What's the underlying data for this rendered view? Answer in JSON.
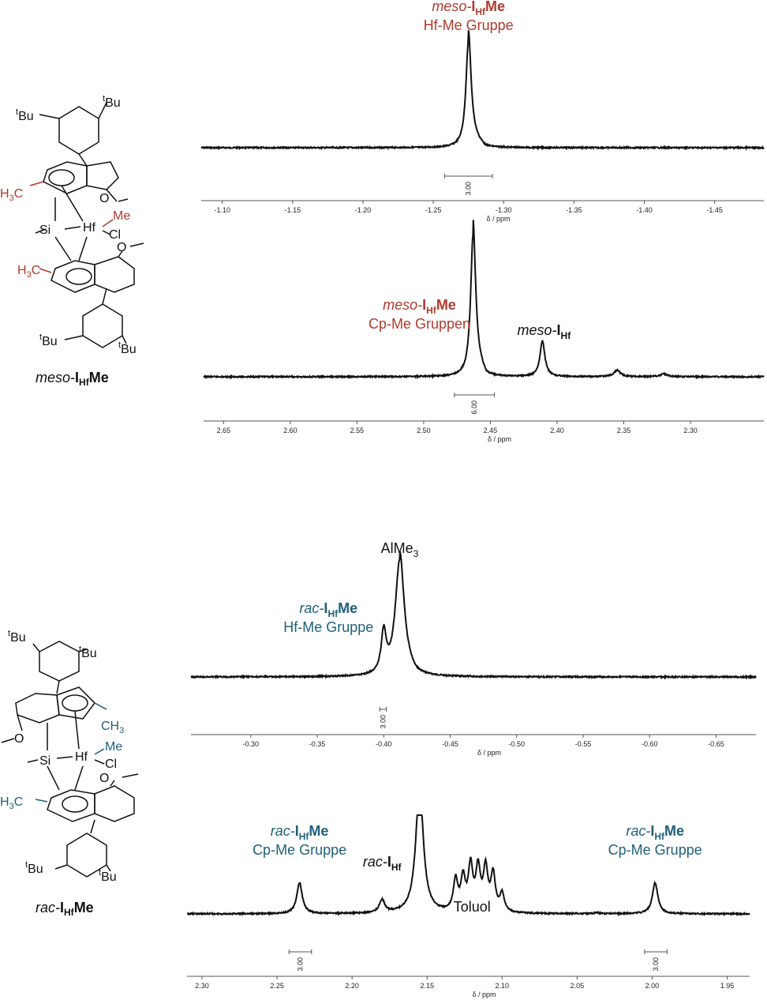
{
  "colors": {
    "meso": "#b03a2e",
    "rac": "#1f5f7a",
    "black": "#111111"
  },
  "compounds": [
    {
      "name_italic": "meso-",
      "name_bold": "I",
      "name_sub": "Hf",
      "name_tail": "Me",
      "labels": {
        "tbu_a": "Bu",
        "tbu_sup": "t",
        "tbu_b": "Bu",
        "tbu_c": "Bu",
        "tbu_d": "Bu",
        "ch3_a": "H",
        "ch3_a_sub": "3",
        "ch3_a_tail": "C",
        "ch3_b": "H",
        "ch3_b_sub": "3",
        "ch3_b_tail": "C",
        "o_a": "O",
        "o_b": "O",
        "si": "Si",
        "hf": "Hf",
        "me": "Me",
        "cl": "Cl"
      }
    },
    {
      "name_italic": "rac-",
      "name_bold": "I",
      "name_sub": "Hf",
      "name_tail": "Me",
      "labels": {
        "tbu_a": "Bu",
        "tbu_sup": "t",
        "tbu_b": "Bu",
        "tbu_c": "Bu",
        "tbu_d": "Bu",
        "ch3_a": "CH",
        "ch3_a_sub": "3",
        "ch3_b": "H",
        "ch3_b_sub": "3",
        "ch3_b_tail": "C",
        "o_a": "O",
        "o_b": "O",
        "si": "Si",
        "hf": "Hf",
        "me": "Me",
        "cl": "Cl"
      }
    }
  ],
  "chart_data": [
    {
      "type": "line",
      "xlabel": "δ / ppm",
      "xlim": [
        -1.085,
        -1.485
      ],
      "ticks": [
        -1.1,
        -1.15,
        -1.2,
        -1.25,
        -1.3,
        -1.35,
        -1.4,
        -1.45
      ],
      "tick_labels": [
        "-1.10",
        "-1.15",
        "-1.20",
        "-1.25",
        "-1.30",
        "-1.35",
        "-1.40",
        "-1.45"
      ],
      "peaks": [
        {
          "x": -1.275,
          "height": 1.0,
          "width": 0.0022,
          "tail": 0.012,
          "tail_height": 0.1
        }
      ],
      "integrals": [
        {
          "from": -1.258,
          "to": -1.292,
          "value": "3.00"
        }
      ],
      "annotations": [
        {
          "at": -1.275,
          "lines": [
            {
              "italic": "meso-",
              "bold": "I",
              "sub": "Hf",
              "tail": "Me"
            },
            {
              "plain": "Hf-Me Gruppe"
            }
          ],
          "color": "meso"
        }
      ]
    },
    {
      "type": "line",
      "xlabel": "δ / ppm",
      "xlim": [
        2.665,
        2.245
      ],
      "ticks": [
        2.65,
        2.6,
        2.55,
        2.5,
        2.45,
        2.4,
        2.35,
        2.3
      ],
      "tick_labels": [
        "2.65",
        "2.60",
        "2.55",
        "2.50",
        "2.45",
        "2.40",
        "2.35",
        "2.30"
      ],
      "peaks": [
        {
          "x": 2.463,
          "height": 1.0,
          "width": 0.0022,
          "tail": 0.01,
          "tail_height": 0.12
        },
        {
          "x": 2.411,
          "height": 0.25,
          "width": 0.0022
        },
        {
          "x": 2.355,
          "height": 0.045,
          "width": 0.003
        },
        {
          "x": 2.32,
          "height": 0.02,
          "width": 0.003
        }
      ],
      "integrals": [
        {
          "from": 2.477,
          "to": 2.447,
          "value": "6.00"
        }
      ],
      "annotations": [
        {
          "at": 2.463,
          "lines": [
            {
              "italic": "meso-",
              "bold": "I",
              "sub": "Hf",
              "tail": "Me"
            },
            {
              "plain": "Cp-Me Gruppen"
            }
          ],
          "color": "meso"
        },
        {
          "at": 2.411,
          "lines": [
            {
              "italic": "meso-",
              "bold": "I",
              "sub": "Hf"
            }
          ],
          "color": "black"
        }
      ]
    },
    {
      "type": "line",
      "xlabel": "δ / ppm",
      "xlim": [
        -0.255,
        -0.68
      ],
      "ticks": [
        -0.3,
        -0.35,
        -0.4,
        -0.45,
        -0.5,
        -0.55,
        -0.6,
        -0.65
      ],
      "tick_labels": [
        "-0.30",
        "-0.35",
        "-0.40",
        "-0.45",
        "-0.50",
        "-0.55",
        "-0.60",
        "-0.65"
      ],
      "peaks": [
        {
          "x": -0.4,
          "height": 0.35,
          "width": 0.0022
        },
        {
          "x": -0.412,
          "height": 1.0,
          "width": 0.004,
          "tail": 0.012,
          "tail_height": 0.08
        }
      ],
      "integrals": [
        {
          "from": -0.397,
          "to": -0.402,
          "value": "3.00"
        }
      ],
      "annotations": [
        {
          "at": -0.412,
          "lines": [
            {
              "plain": "AlMe",
              "sub": "3"
            }
          ],
          "color": "black"
        },
        {
          "at": -0.4,
          "lines": [
            {
              "italic": "rac-",
              "bold": "I",
              "sub": "Hf",
              "tail": "Me"
            },
            {
              "plain": "Hf-Me Gruppe"
            }
          ],
          "color": "rac"
        }
      ]
    },
    {
      "type": "line",
      "xlabel": "δ / ppm",
      "xlim": [
        2.31,
        1.935
      ],
      "ticks": [
        2.3,
        2.25,
        2.2,
        2.15,
        2.1,
        2.05,
        2.0,
        1.95
      ],
      "tick_labels": [
        "2.30",
        "2.25",
        "2.20",
        "2.15",
        "2.10",
        "2.05",
        "2.00",
        "1.95"
      ],
      "peaks": [
        {
          "x": 2.235,
          "height": 0.6,
          "width": 0.0022
        },
        {
          "x": 2.18,
          "height": 0.25,
          "width": 0.0022
        },
        {
          "x": 2.155,
          "height": 2.5,
          "width": 0.003
        },
        {
          "x": 2.131,
          "height": 0.6,
          "width": 0.0018
        },
        {
          "x": 2.126,
          "height": 0.62,
          "width": 0.0018
        },
        {
          "x": 2.121,
          "height": 0.85,
          "width": 0.0018
        },
        {
          "x": 2.116,
          "height": 0.82,
          "width": 0.0018
        },
        {
          "x": 2.111,
          "height": 0.82,
          "width": 0.0018
        },
        {
          "x": 2.106,
          "height": 0.72,
          "width": 0.0018
        },
        {
          "x": 2.1,
          "height": 0.35,
          "width": 0.0018
        },
        {
          "x": 2.037,
          "height": 0.02,
          "width": 0.002
        },
        {
          "x": 1.998,
          "height": 0.6,
          "width": 0.0022
        }
      ],
      "integrals": [
        {
          "from": 2.242,
          "to": 2.227,
          "value": "3.00"
        },
        {
          "from": 2.005,
          "to": 1.99,
          "value": "3.00"
        }
      ],
      "annotations": [
        {
          "at": 2.235,
          "lines": [
            {
              "italic": "rac-",
              "bold": "I",
              "sub": "Hf",
              "tail": "Me"
            },
            {
              "plain": "Cp-Me Gruppe"
            }
          ],
          "color": "rac"
        },
        {
          "at": 2.18,
          "lines": [
            {
              "italic": "rac-",
              "bold": "I",
              "sub": "Hf"
            }
          ],
          "color": "black"
        },
        {
          "at": 2.12,
          "lines": [
            {
              "plain": "Toluol"
            }
          ],
          "color": "black"
        },
        {
          "at": 1.998,
          "lines": [
            {
              "italic": "rac-",
              "bold": "I",
              "sub": "Hf",
              "tail": "Me"
            },
            {
              "plain": "Cp-Me Gruppe"
            }
          ],
          "color": "rac"
        }
      ]
    }
  ]
}
